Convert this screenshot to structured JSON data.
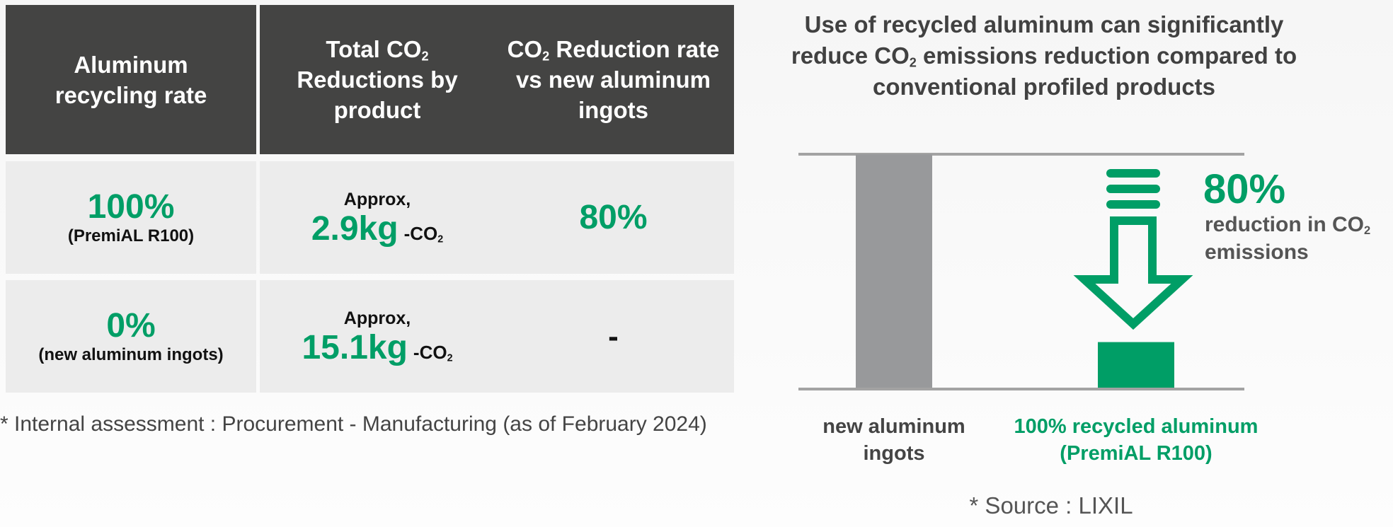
{
  "table": {
    "headers": [
      {
        "text": "Aluminum recycling rate",
        "sub": ""
      },
      {
        "pre": "Total CO",
        "sub": "2",
        "post": " Reductions by product"
      },
      {
        "pre": "CO",
        "sub": "2",
        "post": " Reduction rate vs new aluminum ingots"
      }
    ],
    "rows": [
      {
        "rate": "100%",
        "rate_note": "(PremiAL R100)",
        "approx": "Approx,",
        "value": "2.9kg",
        "unit_pre": "-CO",
        "unit_sub": "2",
        "reduction": "80%"
      },
      {
        "rate": "0%",
        "rate_note": "(new aluminum ingots)",
        "approx": "Approx,",
        "value": "15.1kg",
        "unit_pre": "-CO",
        "unit_sub": "2",
        "reduction": "-"
      }
    ],
    "footnote": "* Internal assessment : Procurement - Manufacturing (as of February 2024)"
  },
  "chart_data": {
    "type": "bar",
    "title_line1": "Use of recycled aluminum can significantly",
    "title_line2_pre": "reduce CO",
    "title_line2_sub": "2",
    "title_line2_post": " emissions reduction compared to",
    "title_line3": "conventional profiled products",
    "categories": [
      "new aluminum ingots",
      "100% recycled aluminum (PremiAL R100)"
    ],
    "values": [
      100,
      20
    ],
    "ylim": [
      0,
      100
    ],
    "colors": [
      "#98999b",
      "#009e66"
    ],
    "annotation_value": "80%",
    "annotation_pre": "reduction in CO",
    "annotation_sub": "2",
    "annotation_post": "emissions",
    "xlabels": [
      {
        "line1": "new aluminum",
        "line2": "ingots"
      },
      {
        "line1": "100% recycled aluminum",
        "line2": "(PremiAL R100)"
      }
    ],
    "source": "* Source : LIXIL"
  }
}
